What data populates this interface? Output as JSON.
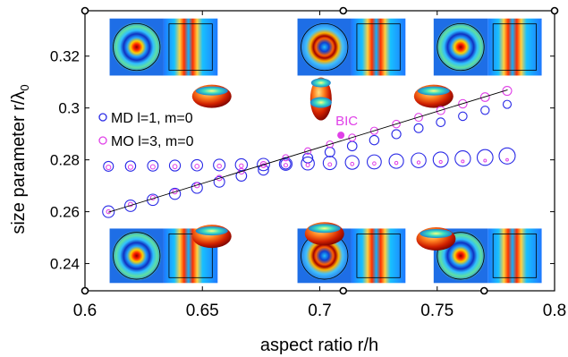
{
  "chart_data": {
    "type": "scatter",
    "xlabel": "aspect ratio r/h",
    "ylabel_main": "size parameter r/λ",
    "ylabel_sub": "0",
    "xlim": [
      0.6,
      0.8
    ],
    "ylim": [
      0.2295,
      0.3375
    ],
    "x_ticks": [
      0.6,
      0.65,
      0.7,
      0.75,
      0.8
    ],
    "x_tick_labels": [
      "0.6",
      "0.65",
      "0.7",
      "0.75",
      "0.8"
    ],
    "y_ticks": [
      0.24,
      0.26,
      0.28,
      0.3,
      0.32
    ],
    "y_tick_labels": [
      "0.24",
      "0.26",
      "0.28",
      "0.3",
      "0.32"
    ],
    "legend": {
      "placement": "left",
      "entries": [
        {
          "label": "MD l=1, m=0",
          "color": "#2a2ae6"
        },
        {
          "label": "MO l=3, m=0",
          "color": "#e040e8"
        }
      ]
    },
    "annotation": {
      "text": "BIC",
      "x": 0.709,
      "y": 0.2895,
      "color": "#e040e8"
    },
    "series": [
      {
        "name": "MD l=1, m=0",
        "color": "#2a2ae6",
        "x": [
          0.61,
          0.6194,
          0.6289,
          0.6383,
          0.6477,
          0.6572,
          0.6666,
          0.676,
          0.6855,
          0.6949,
          0.7043,
          0.7138,
          0.7232,
          0.7326,
          0.7421,
          0.7515,
          0.7609,
          0.7704,
          0.7798
        ],
        "lower_branch_y": [
          0.26,
          0.2623,
          0.2646,
          0.2669,
          0.2692,
          0.2715,
          0.2738,
          0.2761,
          0.2784,
          0.2807,
          0.283,
          0.2853,
          0.2876,
          0.2899,
          0.2922,
          0.2945,
          0.2968,
          0.2991,
          0.3014
        ],
        "upper_branch_y": [
          0.2775,
          0.2776,
          0.2777,
          0.2778,
          0.2779,
          0.278,
          0.2781,
          0.2782,
          0.2784,
          0.2786,
          0.2788,
          0.279,
          0.2792,
          0.2795,
          0.2798,
          0.2801,
          0.2805,
          0.2809,
          0.2815
        ]
      },
      {
        "name": "MO l=3, m=0",
        "color": "#e040e8",
        "x": [
          0.61,
          0.6194,
          0.6289,
          0.6383,
          0.6477,
          0.6572,
          0.6666,
          0.676,
          0.6855,
          0.6949,
          0.7043,
          0.7138,
          0.7232,
          0.7326,
          0.7421,
          0.7515,
          0.7609,
          0.7704,
          0.7798
        ],
        "lower_branch_y": [
          0.2771,
          0.2772,
          0.2773,
          0.2774,
          0.2775,
          0.2776,
          0.2777,
          0.2778,
          0.2779,
          0.278,
          0.2782,
          0.2784,
          0.2786,
          0.2788,
          0.279,
          0.2792,
          0.2794,
          0.2797,
          0.28
        ],
        "upper_branch_y": [
          0.26,
          0.2628,
          0.2654,
          0.2678,
          0.2702,
          0.273,
          0.2756,
          0.2782,
          0.2808,
          0.2834,
          0.286,
          0.2886,
          0.2912,
          0.2938,
          0.2964,
          0.299,
          0.3016,
          0.3042,
          0.3066
        ]
      }
    ],
    "fit_line": {
      "x": [
        0.61,
        0.78
      ],
      "y": [
        0.2598,
        0.307
      ],
      "color": "#000000"
    },
    "insets": [
      {
        "name": "field-map-top-left",
        "x0": 0.6105,
        "x1": 0.6565,
        "y0": 0.3125,
        "y1": 0.3345
      },
      {
        "name": "field-map-top-center",
        "x0": 0.6905,
        "x1": 0.7365,
        "y0": 0.3125,
        "y1": 0.3345
      },
      {
        "name": "field-map-top-right",
        "x0": 0.7485,
        "x1": 0.7945,
        "y0": 0.3125,
        "y1": 0.3345
      },
      {
        "name": "field-map-bottom-left",
        "x0": 0.6105,
        "x1": 0.6565,
        "y0": 0.2325,
        "y1": 0.2535
      },
      {
        "name": "field-map-bottom-center",
        "x0": 0.6905,
        "x1": 0.7365,
        "y0": 0.2325,
        "y1": 0.2535
      },
      {
        "name": "field-map-bottom-right",
        "x0": 0.7485,
        "x1": 0.7945,
        "y0": 0.2325,
        "y1": 0.2535
      }
    ],
    "shapes": [
      {
        "name": "oblate-spheroid",
        "x": 0.654,
        "y": 0.3045
      },
      {
        "name": "prolate-spheroid",
        "x": 0.7005,
        "y": 0.3035
      },
      {
        "name": "oblate-spheroid",
        "x": 0.7485,
        "y": 0.3045
      },
      {
        "name": "oblate-spheroid",
        "x": 0.654,
        "y": 0.2505
      },
      {
        "name": "oblate-spheroid",
        "x": 0.702,
        "y": 0.2515
      },
      {
        "name": "oblate-spheroid",
        "x": 0.7495,
        "y": 0.2495
      }
    ],
    "marker_rings": [
      {
        "x": 0.6,
        "y": 0.3375
      },
      {
        "x": 0.71,
        "y": 0.3375
      },
      {
        "x": 0.8,
        "y": 0.3375
      },
      {
        "x": 0.6,
        "y": 0.2295
      },
      {
        "x": 0.71,
        "y": 0.2295
      },
      {
        "x": 0.77,
        "y": 0.2295
      }
    ]
  }
}
